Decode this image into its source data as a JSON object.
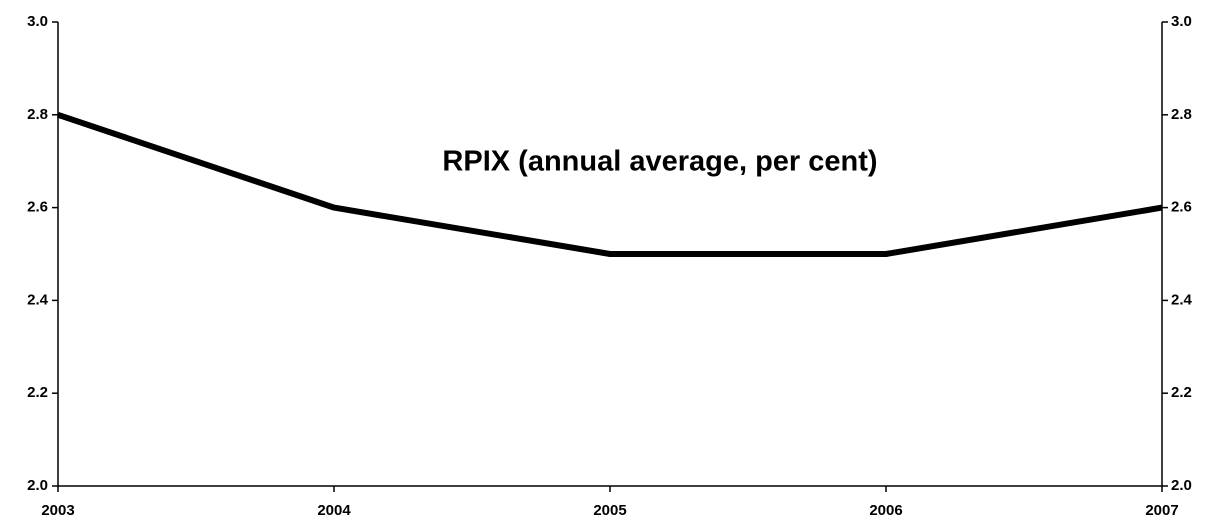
{
  "chart_data": {
    "type": "line",
    "title": "RPIX (annual average, per cent)",
    "x": [
      2003,
      2004,
      2005,
      2006,
      2007
    ],
    "series": [
      {
        "name": "RPIX",
        "color": "#000000",
        "values": [
          2.8,
          2.6,
          2.5,
          2.5,
          2.6
        ]
      }
    ],
    "xlim": [
      2003,
      2007
    ],
    "xticks": [
      2003,
      2004,
      2005,
      2006,
      2007
    ],
    "ylim": [
      2,
      3
    ],
    "yticks": [
      {
        "value": 2,
        "label": "2.0"
      },
      2.2,
      2.4,
      2.6,
      2.8,
      {
        "value": 3,
        "label": "3.0"
      }
    ],
    "y2lim": [
      2,
      3
    ],
    "y2ticks": [
      {
        "value": 2,
        "label": "2.0"
      },
      2.2,
      2.4,
      2.6,
      2.8,
      {
        "value": 3,
        "label": "3.0"
      }
    ],
    "grid": false
  }
}
